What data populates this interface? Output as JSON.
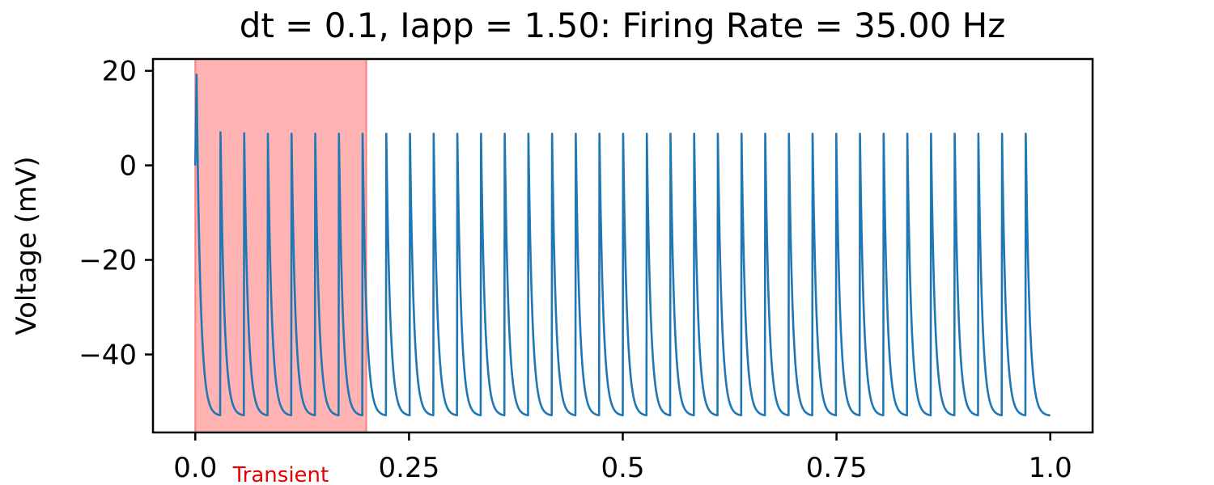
{
  "chart_data": {
    "type": "line",
    "title": "dt = 0.1, Iapp = 1.50: Firing Rate = 35.00 Hz",
    "xlabel": "",
    "ylabel": "Voltage (mV)",
    "xlim": [
      -0.0495,
      1.0495
    ],
    "ylim": [
      -56.5,
      22.5
    ],
    "x_ticks": [
      {
        "value": 0.0,
        "label": "0.0"
      },
      {
        "value": 0.25,
        "label": "0.25"
      },
      {
        "value": 0.5,
        "label": "0.5"
      },
      {
        "value": 0.75,
        "label": "0.75"
      },
      {
        "value": 1.0,
        "label": "1.0"
      }
    ],
    "y_ticks": [
      {
        "value": 20,
        "label": "20"
      },
      {
        "value": 0,
        "label": "0"
      },
      {
        "value": -20,
        "label": "−20"
      },
      {
        "value": -40,
        "label": "−40"
      }
    ],
    "grid": false,
    "legend": "none",
    "series": [
      {
        "color": "#1f77b4",
        "description": "membrane voltage trace (integrate-and-fire spikes)",
        "start": {
          "x": 0.0,
          "y": 0.0
        },
        "first_peak": {
          "x": 0.0015,
          "y": 19.2
        },
        "end": {
          "x": 1.0,
          "y": -52.7
        },
        "trough_y": -53.0,
        "spike_peaks": [
          {
            "x": 0.0295,
            "y": 7.0
          },
          {
            "x": 0.0572,
            "y": 6.8
          },
          {
            "x": 0.0849,
            "y": 6.7
          },
          {
            "x": 0.1126,
            "y": 6.7
          },
          {
            "x": 0.1403,
            "y": 6.7
          },
          {
            "x": 0.168,
            "y": 6.7
          },
          {
            "x": 0.1957,
            "y": 6.7
          },
          {
            "x": 0.2234,
            "y": 6.7
          },
          {
            "x": 0.2511,
            "y": 6.7
          },
          {
            "x": 0.2788,
            "y": 6.7
          },
          {
            "x": 0.3065,
            "y": 6.7
          },
          {
            "x": 0.3342,
            "y": 6.7
          },
          {
            "x": 0.3619,
            "y": 6.7
          },
          {
            "x": 0.3896,
            "y": 6.7
          },
          {
            "x": 0.4173,
            "y": 6.7
          },
          {
            "x": 0.445,
            "y": 6.7
          },
          {
            "x": 0.4727,
            "y": 6.7
          },
          {
            "x": 0.5004,
            "y": 6.7
          },
          {
            "x": 0.5281,
            "y": 6.7
          },
          {
            "x": 0.5558,
            "y": 6.7
          },
          {
            "x": 0.5835,
            "y": 6.7
          },
          {
            "x": 0.6112,
            "y": 6.7
          },
          {
            "x": 0.6389,
            "y": 6.7
          },
          {
            "x": 0.6666,
            "y": 6.7
          },
          {
            "x": 0.6943,
            "y": 6.7
          },
          {
            "x": 0.722,
            "y": 6.7
          },
          {
            "x": 0.7497,
            "y": 6.7
          },
          {
            "x": 0.7774,
            "y": 6.7
          },
          {
            "x": 0.8051,
            "y": 6.7
          },
          {
            "x": 0.8328,
            "y": 6.7
          },
          {
            "x": 0.8605,
            "y": 6.7
          },
          {
            "x": 0.8882,
            "y": 6.7
          },
          {
            "x": 0.9159,
            "y": 6.7
          },
          {
            "x": 0.9436,
            "y": 6.7
          },
          {
            "x": 0.9713,
            "y": 6.7
          }
        ]
      }
    ],
    "shaded_region": {
      "x_start": 0.0,
      "x_end": 0.2,
      "fill_color": "#ffb3b3",
      "edge_color": "#ff8080"
    },
    "annotations": [
      {
        "text": "Transient",
        "x": 0.1,
        "color": "#e60000",
        "placement": "below-x-axis"
      }
    ]
  }
}
